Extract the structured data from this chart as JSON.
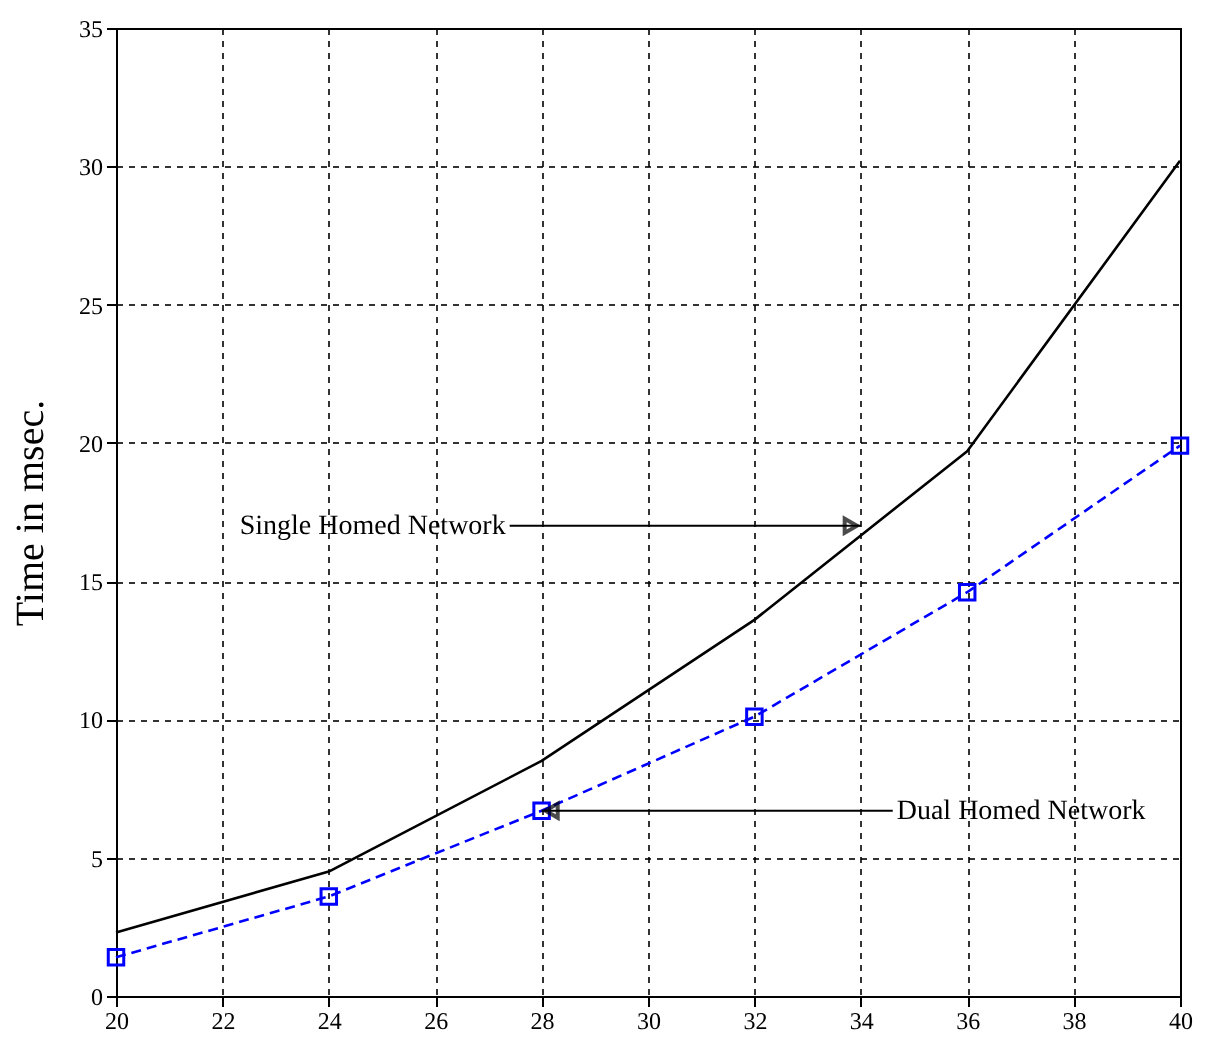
{
  "chart_data": {
    "type": "line",
    "ylabel": "Time in msec.",
    "x": [
      20,
      24,
      28,
      32,
      36,
      40
    ],
    "series": [
      {
        "color": "#000000",
        "values": [
          2.3,
          4.5,
          8.5,
          13.6,
          19.7,
          30.2
        ],
        "marker": "none",
        "line_style": "solid"
      },
      {
        "color": "#0000ff",
        "values": [
          1.4,
          3.6,
          6.7,
          10.1,
          14.6,
          19.9
        ],
        "marker": "square",
        "line_style": "dashed"
      }
    ],
    "annotations": [
      {
        "text": "Single Homed Network",
        "x": 34,
        "y": 17
      },
      {
        "text": "Dual Homed Network",
        "x": 28,
        "y": 6.7
      }
    ],
    "xlim": [
      20,
      40
    ],
    "xticks": [
      20,
      22,
      24,
      26,
      28,
      30,
      32,
      34,
      36,
      38,
      40
    ],
    "ylim": [
      0,
      35
    ],
    "yticks": [
      0,
      5,
      10,
      15,
      20,
      25,
      30,
      35
    ],
    "grid": true
  }
}
